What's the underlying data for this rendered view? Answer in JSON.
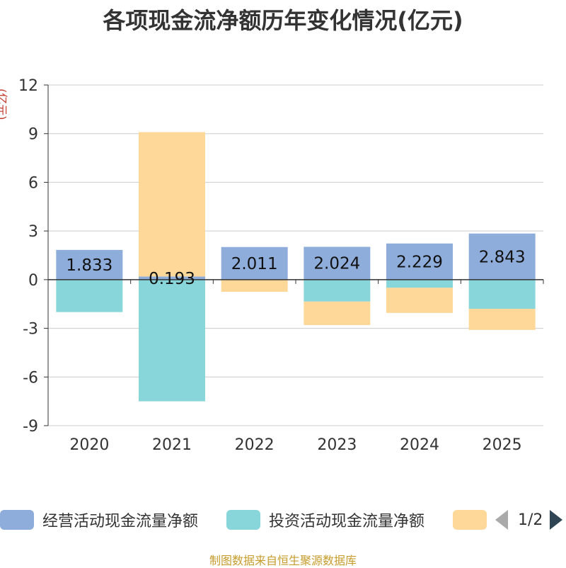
{
  "chart_data": {
    "type": "bar",
    "stacked": true,
    "title": "各项现金流净额历年变化情况(亿元)",
    "ylabel": "(亿元)",
    "ylim": [
      -9,
      12
    ],
    "yticks": [
      -9,
      -6,
      -3,
      0,
      3,
      6,
      9,
      12
    ],
    "categories": [
      "2020",
      "2021",
      "2022",
      "2023",
      "2024",
      "2025"
    ],
    "series": [
      {
        "name": "经营活动现金流量净额",
        "color": "#8eaddb",
        "values": [
          1.833,
          0.193,
          2.011,
          2.024,
          2.229,
          2.843
        ],
        "labels": [
          "1.833",
          "0.193",
          "2.011",
          "2.024",
          "2.229",
          "2.843"
        ]
      },
      {
        "name": "投资活动现金流量净额",
        "color": "#88d6d9",
        "values": [
          -2.0,
          -7.5,
          0,
          -1.35,
          -0.5,
          -1.8
        ]
      },
      {
        "name": "",
        "color": "#fdd898",
        "values": [
          0,
          8.9,
          -0.75,
          -1.45,
          -1.55,
          -1.3
        ]
      }
    ],
    "legend": {
      "page": "1/2"
    }
  },
  "source_note": "制图数据来自恒生聚源数据库"
}
